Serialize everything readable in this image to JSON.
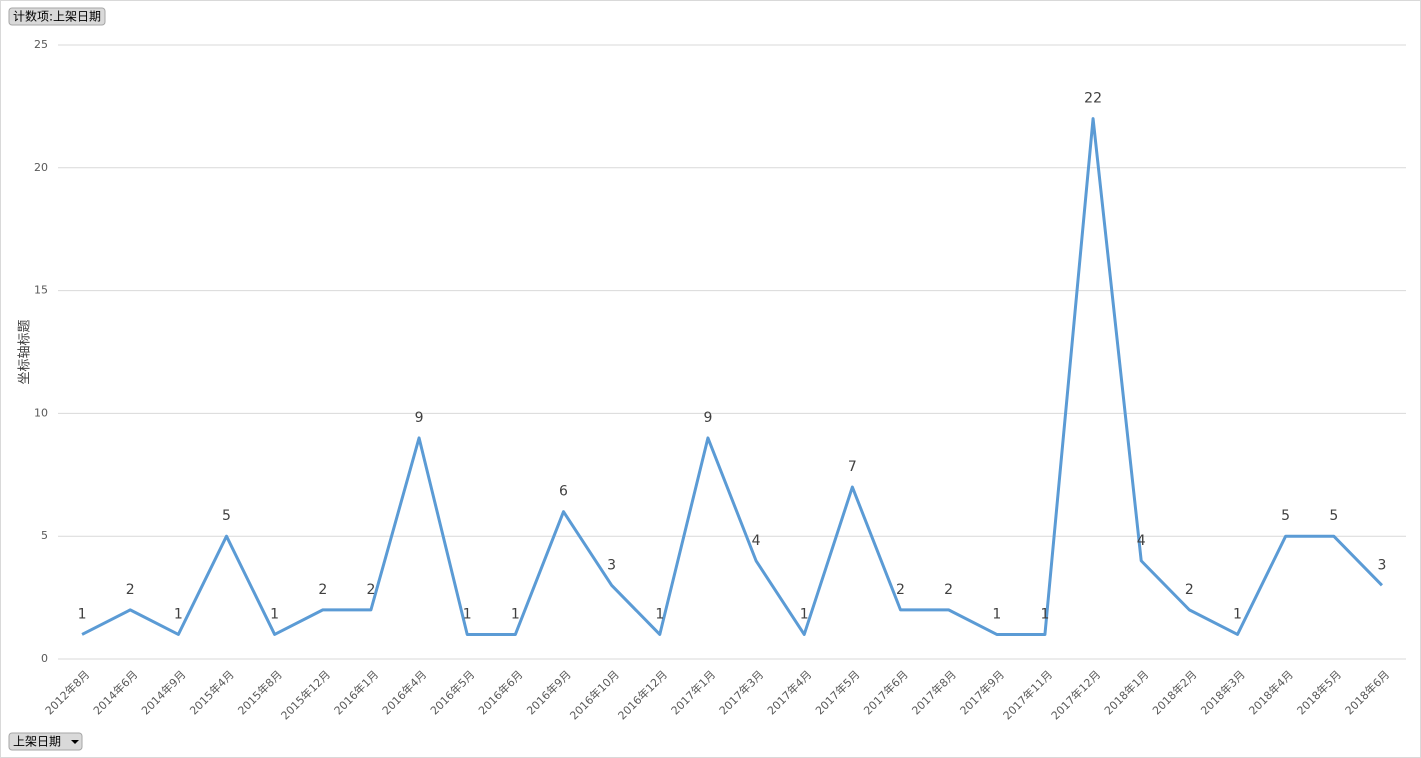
{
  "chart_data": {
    "type": "line",
    "value_field": "计数项:上架日期",
    "axis_field": "上架日期",
    "y_label": "坐标轴标题",
    "categories": [
      "2012年8月",
      "2014年6月",
      "2014年9月",
      "2015年4月",
      "2015年8月",
      "2015年12月",
      "2016年1月",
      "2016年4月",
      "2016年5月",
      "2016年6月",
      "2016年9月",
      "2016年10月",
      "2016年12月",
      "2017年1月",
      "2017年3月",
      "2017年4月",
      "2017年5月",
      "2017年6月",
      "2017年8月",
      "2017年9月",
      "2017年11月",
      "2017年12月",
      "2018年1月",
      "2018年2月",
      "2018年3月",
      "2018年4月",
      "2018年5月",
      "2018年6月"
    ],
    "values": [
      1,
      2,
      1,
      5,
      1,
      2,
      2,
      9,
      1,
      1,
      6,
      3,
      1,
      9,
      4,
      1,
      7,
      2,
      2,
      1,
      1,
      22,
      4,
      2,
      1,
      5,
      5,
      3
    ],
    "color": "#5b9bd5",
    "ylim": [
      0,
      25
    ],
    "yticks": [
      0,
      5,
      10,
      15,
      20,
      25
    ],
    "grid": true
  }
}
